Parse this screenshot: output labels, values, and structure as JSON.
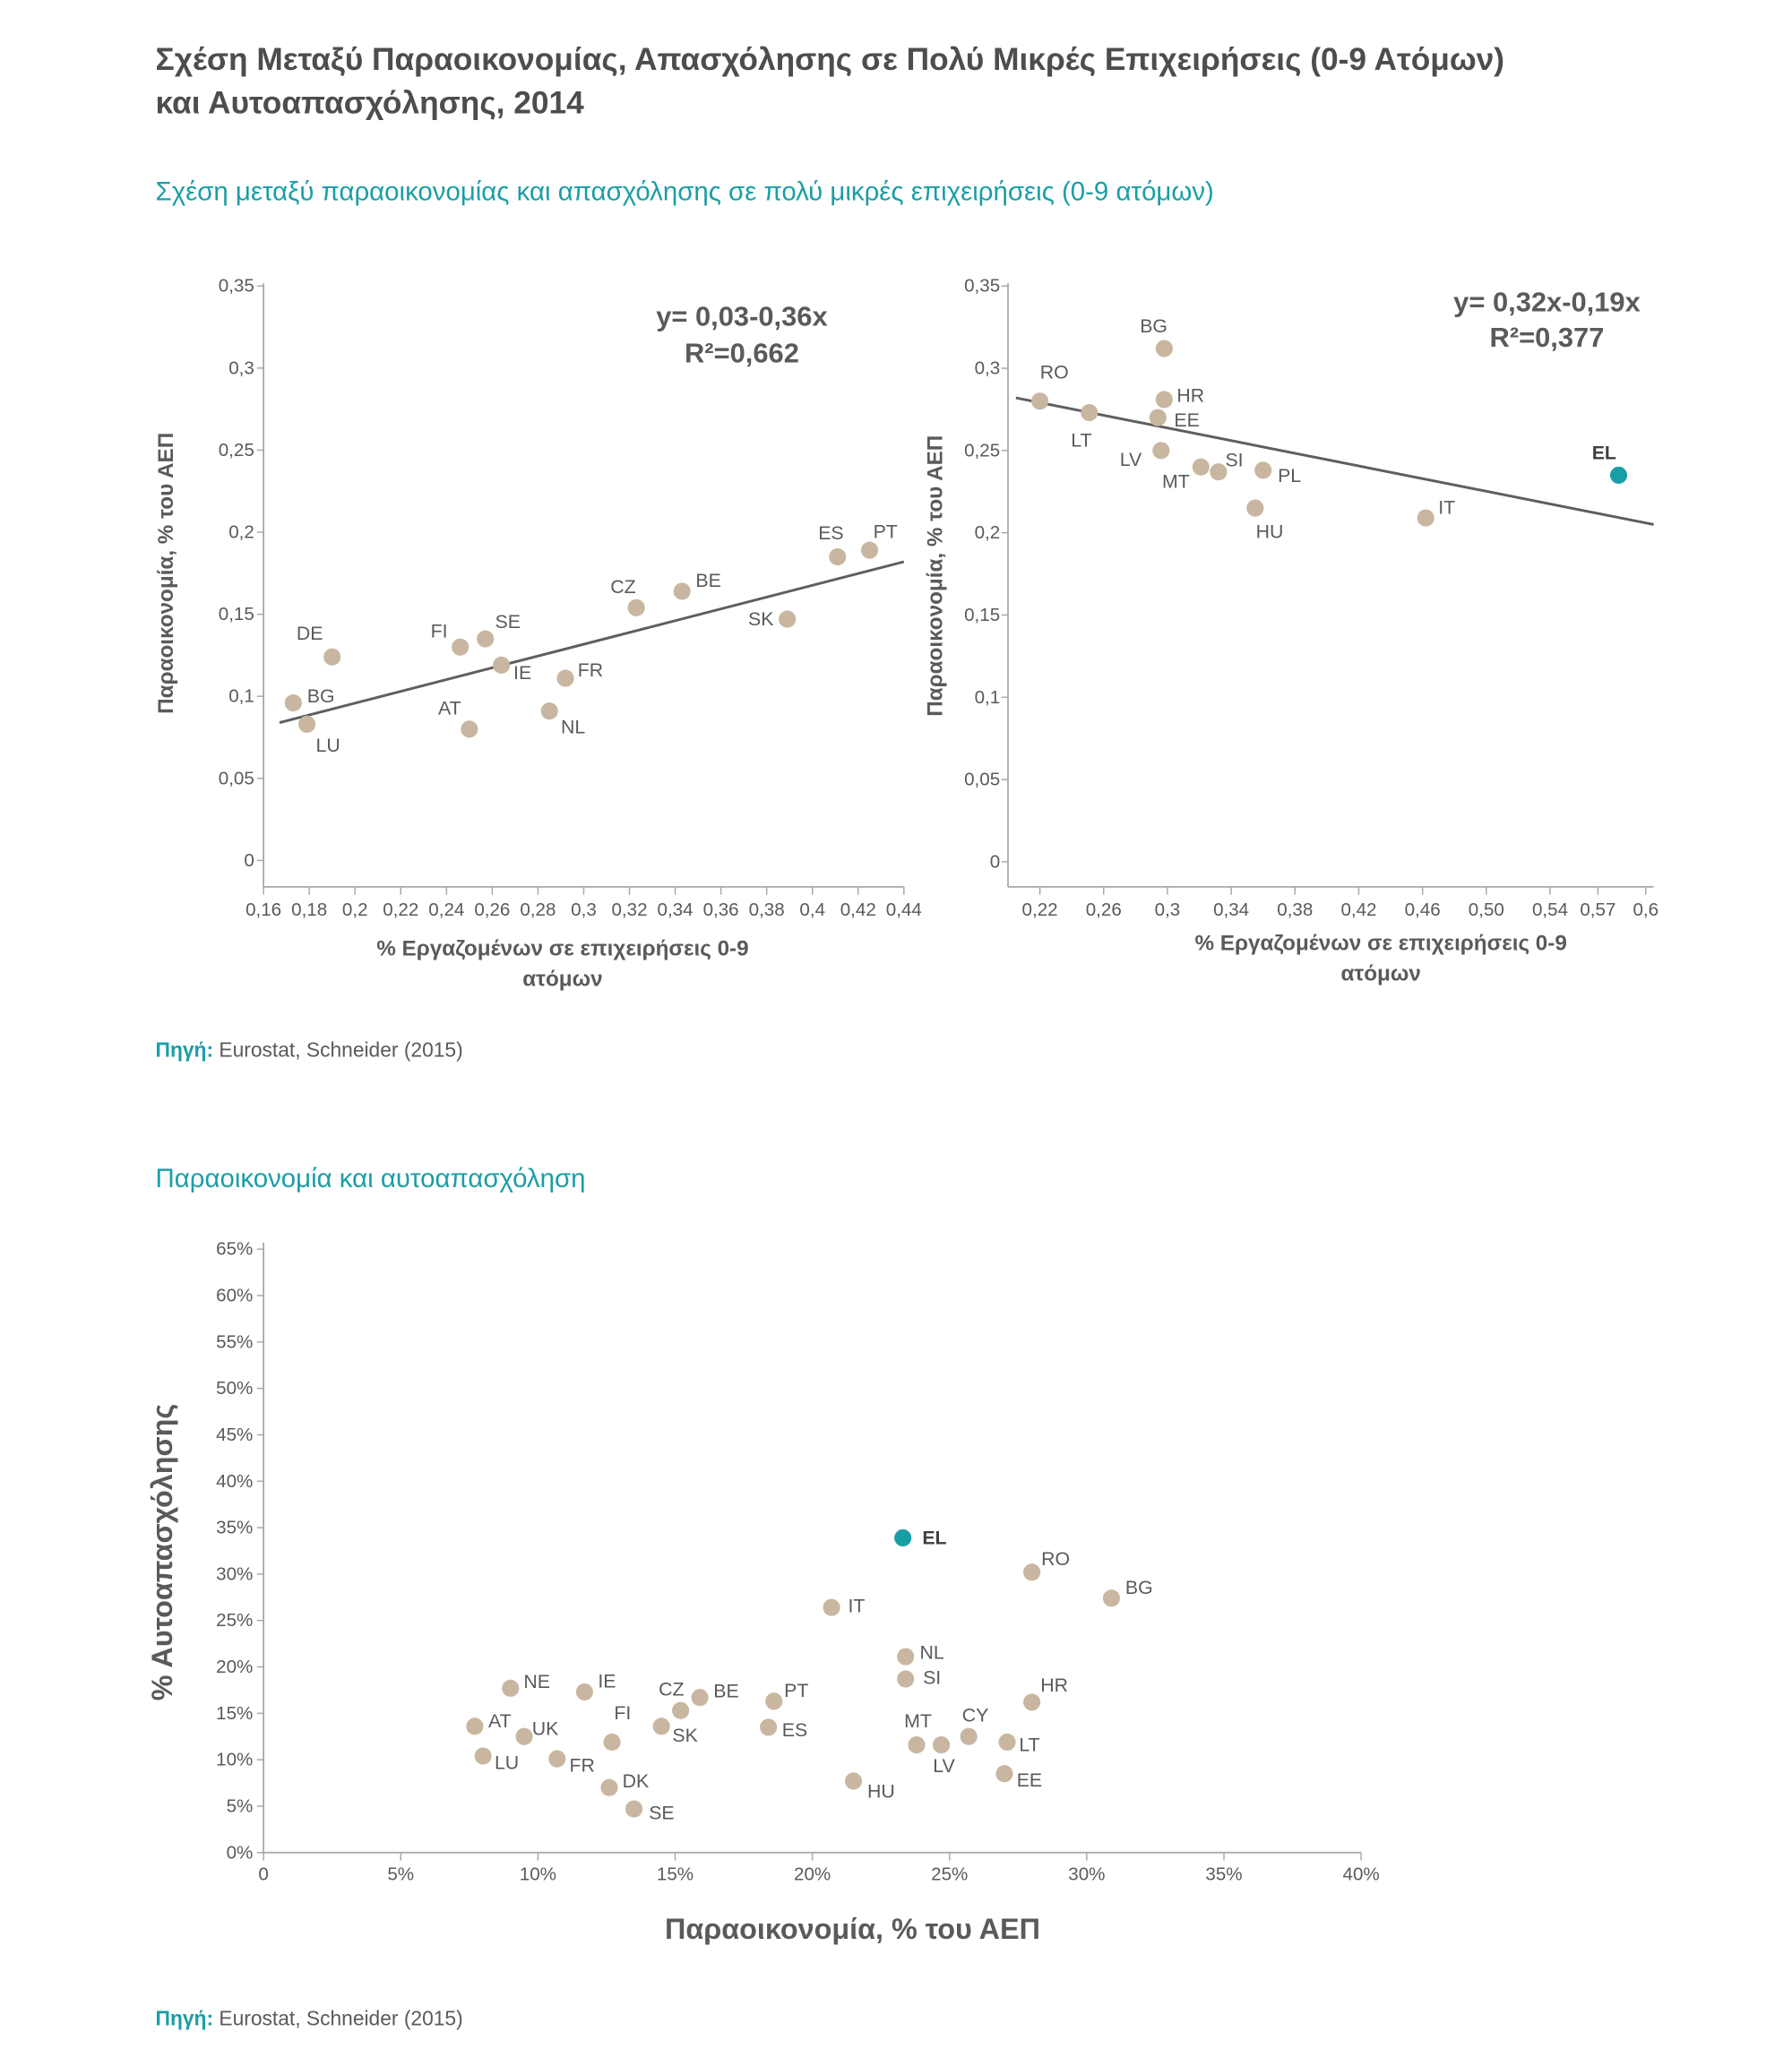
{
  "title_lines": [
    "Σχέση Μεταξύ Παραοικονομίας, Απασχόλησης σε Πολύ Μικρές Επιχειρήσεις (0-9 Ατόμων)",
    "και Αυτοαπασχόλησης, 2014"
  ],
  "sections": [
    {
      "heading": "Σχέση μεταξύ παραοικονομίας και απασχόλησης σε πολύ μικρές επιχειρήσεις (0-9 ατόμων)",
      "source_label": "Πηγή:",
      "source_text": "Eurostat, Schneider (2015)"
    },
    {
      "heading": "Παραοικονομία και αυτοαπασχόληση",
      "source_label": "Πηγή:",
      "source_text": "Eurostat, Schneider (2015)"
    }
  ],
  "colors": {
    "title": "#4d4d4d",
    "accent": "#1a9ea6",
    "text": "#5a5a5a",
    "axis": "#a8a8a8",
    "trend": "#5e5e5e",
    "point": "#c8b6a0",
    "highlight": "#1a9ea6"
  },
  "chart_data": [
    {
      "type": "scatter",
      "xlabel_lines": [
        "% Εργαζομένων σε επιχειρήσεις 0-9",
        "ατόμων"
      ],
      "ylabel": "Παραοικονομία, % του ΑΕΠ",
      "xlim": [
        0.16,
        0.44
      ],
      "ylim": [
        0,
        0.35
      ],
      "grid": false,
      "x_ticks": [
        "0,16",
        "0,18",
        "0,2",
        "0,22",
        "0,24",
        "0,26",
        "0,28",
        "0,3",
        "0,32",
        "0,34",
        "0,36",
        "0,38",
        "0,4",
        "0,42",
        "0,44"
      ],
      "y_ticks": [
        "0",
        "0,05",
        "0,1",
        "0,15",
        "0,2",
        "0,25",
        "0,3",
        "0,35"
      ],
      "trendline": {
        "x": [
          0.167,
          0.44
        ],
        "y": [
          0.084,
          0.182
        ],
        "equation": "y= 0,03-0,36x",
        "r_squared": "R²=0,662"
      },
      "points": [
        {
          "label": "BG",
          "x": 0.173,
          "y": 0.096
        },
        {
          "label": "LU",
          "x": 0.179,
          "y": 0.083
        },
        {
          "label": "DE",
          "x": 0.19,
          "y": 0.124
        },
        {
          "label": "FI",
          "x": 0.246,
          "y": 0.13
        },
        {
          "label": "SE",
          "x": 0.257,
          "y": 0.135
        },
        {
          "label": "IE",
          "x": 0.264,
          "y": 0.119
        },
        {
          "label": "AT",
          "x": 0.25,
          "y": 0.08
        },
        {
          "label": "NL",
          "x": 0.285,
          "y": 0.091
        },
        {
          "label": "FR",
          "x": 0.292,
          "y": 0.111
        },
        {
          "label": "CZ",
          "x": 0.323,
          "y": 0.154
        },
        {
          "label": "BE",
          "x": 0.343,
          "y": 0.164
        },
        {
          "label": "SK",
          "x": 0.389,
          "y": 0.147
        },
        {
          "label": "ES",
          "x": 0.411,
          "y": 0.185
        },
        {
          "label": "PT",
          "x": 0.425,
          "y": 0.189
        }
      ]
    },
    {
      "type": "scatter",
      "xlabel_lines": [
        "% Εργαζομένων σε επιχειρήσεις 0-9",
        "ατόμων"
      ],
      "ylabel": "Παραοικονομία, % του ΑΕΠ",
      "xlim": [
        0.2,
        0.6
      ],
      "ylim": [
        0,
        0.35
      ],
      "grid": false,
      "x_ticks": [
        "0,22",
        "0,26",
        "0,3",
        "0,34",
        "0,38",
        "0,42",
        "0,46",
        "0,50",
        "0,54",
        "0,57",
        "0,6"
      ],
      "y_ticks": [
        "0",
        "0,05",
        "0,1",
        "0,15",
        "0,2",
        "0,25",
        "0,3",
        "0,35"
      ],
      "trendline": {
        "x": [
          0.205,
          0.605
        ],
        "y": [
          0.282,
          0.205
        ],
        "equation": "y= 0,32x-0,19x",
        "r_squared": "R²=0,377"
      },
      "points": [
        {
          "label": "RO",
          "x": 0.22,
          "y": 0.28
        },
        {
          "label": "LT",
          "x": 0.251,
          "y": 0.273
        },
        {
          "label": "BG",
          "x": 0.298,
          "y": 0.312
        },
        {
          "label": "HR",
          "x": 0.298,
          "y": 0.281
        },
        {
          "label": "EE",
          "x": 0.294,
          "y": 0.27
        },
        {
          "label": "LV",
          "x": 0.296,
          "y": 0.25
        },
        {
          "label": "MT",
          "x": 0.321,
          "y": 0.24
        },
        {
          "label": "SI",
          "x": 0.332,
          "y": 0.237
        },
        {
          "label": "PL",
          "x": 0.36,
          "y": 0.238
        },
        {
          "label": "HU",
          "x": 0.355,
          "y": 0.215
        },
        {
          "label": "IT",
          "x": 0.462,
          "y": 0.209
        },
        {
          "label": "EL",
          "x": 0.583,
          "y": 0.235,
          "highlight": true
        }
      ]
    },
    {
      "type": "scatter",
      "xlabel": "Παραοικονομία, % του ΑΕΠ",
      "ylabel": "% Αυτοαπασχόλησης",
      "xlim": [
        0,
        40
      ],
      "ylim": [
        0,
        65
      ],
      "grid": false,
      "x_ticks": [
        "0",
        "5%",
        "10%",
        "15%",
        "20%",
        "25%",
        "30%",
        "35%",
        "40%"
      ],
      "y_ticks": [
        "0%",
        "5%",
        "10%",
        "15%",
        "20%",
        "25%",
        "30%",
        "35%",
        "40%",
        "45%",
        "50%",
        "55%",
        "60%",
        "65%"
      ],
      "points": [
        {
          "label": "EL",
          "x": 23.3,
          "y": 33.9,
          "highlight": true
        },
        {
          "label": "RO",
          "x": 28.0,
          "y": 30.2
        },
        {
          "label": "BG",
          "x": 30.9,
          "y": 27.4
        },
        {
          "label": "IT",
          "x": 20.7,
          "y": 26.4
        },
        {
          "label": "NL",
          "x": 23.4,
          "y": 21.1
        },
        {
          "label": "SI",
          "x": 23.4,
          "y": 18.7
        },
        {
          "label": "HR",
          "x": 28.0,
          "y": 16.2
        },
        {
          "label": "NE",
          "x": 9.0,
          "y": 17.7
        },
        {
          "label": "IE",
          "x": 11.7,
          "y": 17.3
        },
        {
          "label": "BE",
          "x": 15.9,
          "y": 16.7
        },
        {
          "label": "CZ",
          "x": 15.2,
          "y": 15.3
        },
        {
          "label": "PT",
          "x": 18.6,
          "y": 16.3
        },
        {
          "label": "AT",
          "x": 7.7,
          "y": 13.6
        },
        {
          "label": "UK",
          "x": 9.5,
          "y": 12.5
        },
        {
          "label": "SK",
          "x": 14.5,
          "y": 13.6
        },
        {
          "label": "ES",
          "x": 18.4,
          "y": 13.5
        },
        {
          "label": "FI",
          "x": 12.7,
          "y": 11.9
        },
        {
          "label": "LU",
          "x": 8.0,
          "y": 10.4
        },
        {
          "label": "FR",
          "x": 10.7,
          "y": 10.1
        },
        {
          "label": "DK",
          "x": 12.6,
          "y": 7.0
        },
        {
          "label": "SE",
          "x": 13.5,
          "y": 4.7
        },
        {
          "label": "HU",
          "x": 21.5,
          "y": 7.7
        },
        {
          "label": "MT",
          "x": 23.8,
          "y": 11.6
        },
        {
          "label": "LV",
          "x": 24.7,
          "y": 11.6
        },
        {
          "label": "CY",
          "x": 25.7,
          "y": 12.5
        },
        {
          "label": "LT",
          "x": 27.1,
          "y": 11.9
        },
        {
          "label": "EE",
          "x": 27.0,
          "y": 8.5
        }
      ]
    }
  ]
}
